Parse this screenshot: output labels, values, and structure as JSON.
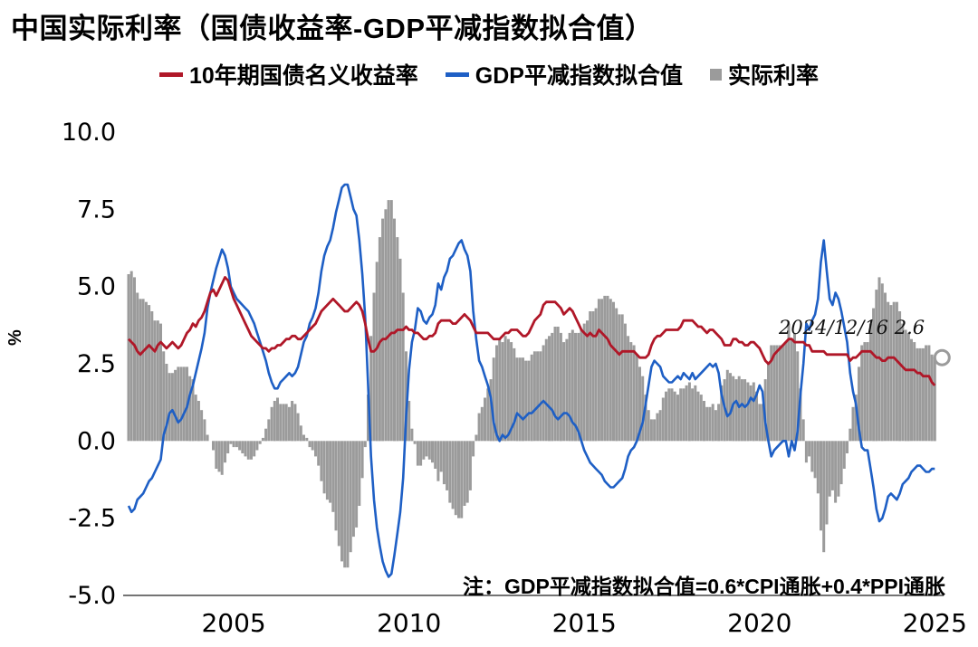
{
  "title": "中国实际利率（国债收益率-GDP平减指数拟合值）",
  "ylabel": "%",
  "annotation": "2024/12/16 2.6",
  "note": "注：GDP平减指数拟合值=0.6*CPI通胀+0.4*PPI通胀",
  "colors": {
    "red": "#b01728",
    "blue": "#1e5fc5",
    "gray": "#9b9b9b"
  },
  "legend": [
    {
      "label": "10年期国债名义收益率",
      "color": "#b01728",
      "type": "line"
    },
    {
      "label": "GDP平减指数拟合值",
      "color": "#1e5fc5",
      "type": "line"
    },
    {
      "label": "实际利率",
      "color": "#9b9b9b",
      "type": "bar"
    }
  ],
  "chart_data": {
    "type": "line+bar",
    "title": "中国实际利率（国债收益率-GDP平减指数拟合值）",
    "xlabel": "",
    "ylabel": "%",
    "ylim": [
      -5.0,
      10.0
    ],
    "x_range": [
      2002,
      2025.25
    ],
    "x_start_year": 2002,
    "x_step": "monthly",
    "grid": false,
    "legend_position": "top",
    "y_ticks": [
      "10.0",
      "7.5",
      "5.0",
      "2.5",
      "0.0",
      "-2.5",
      "-5.0"
    ],
    "x_ticks": [
      2005,
      2010,
      2015,
      2020,
      2025
    ],
    "series": [
      {
        "name": "10年期国债名义收益率",
        "type": "line",
        "color": "#b01728",
        "values": [
          3.3,
          3.2,
          3.1,
          2.9,
          2.8,
          2.9,
          3.0,
          3.1,
          3.0,
          2.9,
          3.1,
          3.2,
          3.1,
          3.0,
          3.1,
          3.2,
          3.1,
          3.0,
          3.1,
          3.3,
          3.5,
          3.6,
          3.8,
          3.7,
          3.9,
          4.0,
          4.2,
          4.5,
          4.8,
          4.9,
          4.7,
          4.9,
          5.1,
          5.3,
          5.2,
          4.9,
          4.6,
          4.4,
          4.2,
          4.0,
          3.8,
          3.6,
          3.4,
          3.3,
          3.2,
          3.1,
          3.0,
          3.0,
          2.9,
          3.0,
          3.0,
          3.1,
          3.1,
          3.2,
          3.3,
          3.3,
          3.4,
          3.4,
          3.3,
          3.3,
          3.4,
          3.5,
          3.6,
          3.7,
          3.8,
          4.0,
          4.2,
          4.3,
          4.4,
          4.5,
          4.6,
          4.5,
          4.4,
          4.3,
          4.2,
          4.2,
          4.3,
          4.4,
          4.5,
          4.4,
          4.2,
          3.8,
          3.3,
          2.9,
          2.9,
          3.0,
          3.2,
          3.3,
          3.3,
          3.4,
          3.5,
          3.5,
          3.6,
          3.6,
          3.6,
          3.7,
          3.6,
          3.6,
          3.5,
          3.5,
          3.4,
          3.3,
          3.3,
          3.4,
          3.4,
          3.5,
          3.8,
          3.9,
          3.9,
          3.9,
          3.9,
          3.8,
          3.8,
          3.9,
          4.0,
          4.1,
          4.0,
          3.9,
          3.7,
          3.5,
          3.5,
          3.5,
          3.5,
          3.5,
          3.4,
          3.3,
          3.3,
          3.3,
          3.4,
          3.5,
          3.5,
          3.6,
          3.6,
          3.6,
          3.5,
          3.4,
          3.4,
          3.5,
          3.7,
          3.9,
          4.0,
          4.1,
          4.4,
          4.5,
          4.5,
          4.5,
          4.5,
          4.4,
          4.3,
          4.1,
          4.2,
          4.3,
          4.2,
          4.0,
          3.8,
          3.6,
          3.5,
          3.4,
          3.5,
          3.4,
          3.4,
          3.6,
          3.5,
          3.4,
          3.3,
          3.1,
          3.0,
          2.9,
          2.8,
          2.9,
          2.9,
          2.9,
          2.9,
          2.9,
          2.8,
          2.7,
          2.7,
          2.7,
          2.8,
          3.1,
          3.3,
          3.4,
          3.4,
          3.5,
          3.6,
          3.6,
          3.6,
          3.6,
          3.6,
          3.7,
          3.9,
          3.9,
          3.9,
          3.9,
          3.8,
          3.7,
          3.7,
          3.6,
          3.5,
          3.6,
          3.6,
          3.5,
          3.4,
          3.3,
          3.1,
          3.1,
          3.1,
          3.3,
          3.3,
          3.2,
          3.2,
          3.1,
          3.1,
          3.2,
          3.2,
          3.1,
          3.0,
          2.8,
          2.6,
          2.5,
          2.6,
          2.8,
          2.9,
          3.0,
          3.1,
          3.2,
          3.3,
          3.3,
          3.2,
          3.2,
          3.2,
          3.2,
          3.1,
          3.1,
          2.9,
          2.9,
          2.9,
          2.9,
          2.9,
          2.8,
          2.8,
          2.8,
          2.8,
          2.8,
          2.8,
          2.8,
          2.8,
          2.6,
          2.7,
          2.7,
          2.8,
          2.9,
          2.9,
          2.9,
          2.9,
          2.8,
          2.7,
          2.7,
          2.6,
          2.6,
          2.7,
          2.7,
          2.7,
          2.6,
          2.5,
          2.4,
          2.3,
          2.3,
          2.3,
          2.3,
          2.2,
          2.2,
          2.1,
          2.1,
          2.1,
          1.9,
          1.8
        ]
      },
      {
        "name": "GDP平减指数拟合值",
        "type": "line",
        "color": "#1e5fc5",
        "values": [
          -2.1,
          -2.3,
          -2.2,
          -1.9,
          -1.8,
          -1.7,
          -1.5,
          -1.3,
          -1.2,
          -1.0,
          -0.8,
          -0.6,
          0.2,
          0.5,
          0.9,
          1.0,
          0.8,
          0.6,
          0.7,
          0.9,
          1.1,
          1.5,
          1.8,
          2.2,
          2.6,
          3.0,
          3.5,
          4.3,
          4.8,
          5.2,
          5.6,
          5.9,
          6.2,
          6.0,
          5.6,
          5.0,
          4.8,
          4.6,
          4.5,
          4.4,
          4.3,
          4.2,
          4.0,
          3.8,
          3.5,
          3.2,
          2.9,
          2.6,
          2.2,
          1.9,
          1.7,
          1.7,
          1.9,
          2.0,
          2.1,
          2.2,
          2.1,
          2.2,
          2.4,
          2.8,
          3.2,
          3.4,
          3.8,
          4.0,
          4.3,
          4.8,
          5.5,
          6.0,
          6.3,
          6.5,
          6.9,
          7.4,
          7.8,
          8.2,
          8.3,
          8.3,
          7.9,
          7.5,
          7.3,
          6.5,
          5.4,
          4.0,
          1.8,
          -0.5,
          -1.9,
          -2.8,
          -3.4,
          -3.9,
          -4.2,
          -4.4,
          -4.3,
          -3.7,
          -3.0,
          -2.3,
          -1.2,
          0.8,
          2.3,
          3.2,
          3.6,
          4.3,
          4.2,
          3.9,
          3.8,
          4.0,
          4.1,
          4.4,
          5.1,
          4.9,
          5.3,
          5.5,
          5.9,
          6.0,
          6.2,
          6.4,
          6.5,
          6.2,
          6.0,
          5.5,
          4.2,
          3.3,
          2.6,
          2.4,
          2.1,
          1.8,
          1.4,
          0.6,
          0.2,
          0.0,
          0.2,
          0.1,
          0.2,
          0.4,
          0.6,
          0.9,
          0.8,
          0.7,
          0.8,
          0.9,
          0.9,
          1.0,
          1.1,
          1.2,
          1.3,
          1.2,
          1.1,
          1.0,
          0.8,
          0.7,
          0.8,
          0.9,
          0.9,
          0.8,
          0.6,
          0.5,
          0.3,
          0.0,
          -0.3,
          -0.5,
          -0.7,
          -0.8,
          -0.9,
          -1.0,
          -1.1,
          -1.3,
          -1.4,
          -1.5,
          -1.5,
          -1.4,
          -1.3,
          -1.2,
          -0.9,
          -0.5,
          -0.3,
          -0.2,
          0.0,
          0.3,
          0.6,
          1.2,
          1.8,
          2.4,
          2.6,
          2.5,
          2.4,
          2.1,
          2.0,
          1.9,
          1.9,
          2.0,
          2.1,
          2.0,
          2.2,
          2.1,
          2.0,
          2.2,
          2.0,
          2.1,
          2.2,
          2.3,
          2.4,
          2.5,
          2.4,
          2.5,
          2.2,
          1.5,
          1.1,
          0.8,
          0.9,
          1.2,
          1.3,
          1.1,
          1.2,
          1.1,
          1.2,
          1.4,
          1.3,
          1.5,
          1.8,
          1.6,
          0.6,
          0.0,
          -0.5,
          -0.3,
          -0.2,
          -0.1,
          0.0,
          0.0,
          -0.5,
          0.0,
          -0.3,
          0.3,
          1.5,
          2.5,
          3.8,
          3.6,
          3.9,
          4.1,
          4.6,
          5.8,
          6.5,
          5.5,
          4.6,
          4.4,
          4.8,
          4.6,
          4.2,
          3.7,
          3.2,
          2.2,
          1.6,
          1.2,
          0.4,
          -0.2,
          -0.3,
          -0.3,
          -0.9,
          -1.5,
          -2.2,
          -2.6,
          -2.5,
          -2.2,
          -1.8,
          -1.7,
          -1.8,
          -1.9,
          -1.7,
          -1.4,
          -1.3,
          -1.2,
          -1.0,
          -0.9,
          -0.8,
          -0.8,
          -0.9,
          -1.0,
          -1.0,
          -0.9,
          -0.9
        ]
      },
      {
        "name": "实际利率",
        "type": "bar",
        "color": "#9b9b9b",
        "derived": "series[0].values - series[1].values"
      }
    ],
    "end_marker": {
      "series": "实际利率",
      "shape": "circle",
      "color": "#9b9b9b"
    }
  }
}
